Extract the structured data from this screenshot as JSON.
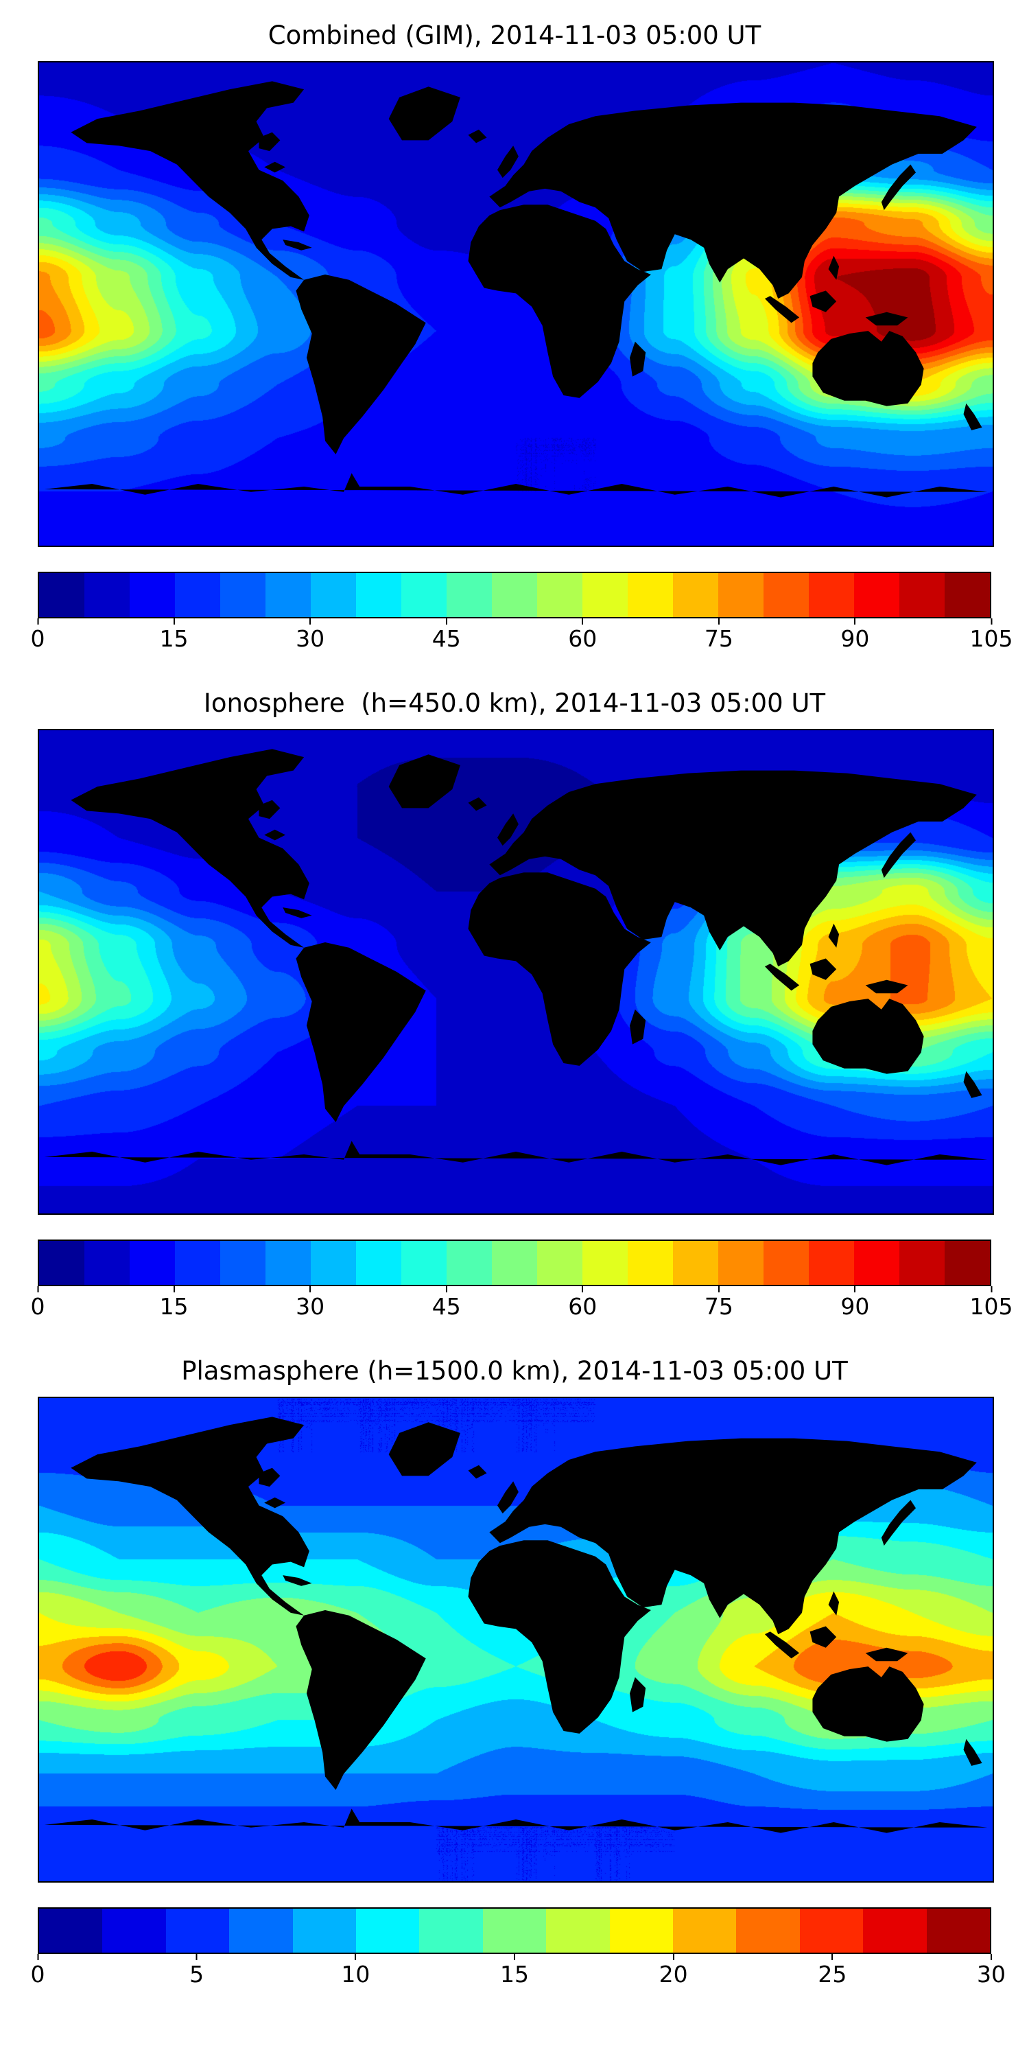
{
  "figure": {
    "description": "Three stacked global TEC maps with jet-colormap filled contours, coastlines and horizontal colorbars"
  },
  "chart_data": [
    {
      "type": "heatmap",
      "title": "Combined (GIM), 2014-11-03 05:00 UT",
      "projection": "equirectangular",
      "xlabel": "",
      "ylabel": "",
      "lon": [
        -180,
        -150,
        -120,
        -90,
        -60,
        -30,
        0,
        30,
        60,
        90,
        120,
        150,
        180
      ],
      "lat": [
        90,
        70,
        50,
        30,
        10,
        -10,
        -30,
        -50,
        -70,
        -90
      ],
      "values": [
        [
          8,
          8,
          8,
          8,
          8,
          8,
          8,
          8,
          8,
          9,
          10,
          9,
          8
        ],
        [
          11,
          10,
          9,
          8,
          8,
          7,
          7,
          8,
          10,
          13,
          16,
          13,
          11
        ],
        [
          18,
          15,
          12,
          10,
          8,
          6,
          6,
          8,
          13,
          22,
          30,
          26,
          20
        ],
        [
          46,
          32,
          21,
          15,
          12,
          8,
          8,
          13,
          27,
          52,
          82,
          76,
          52
        ],
        [
          76,
          56,
          36,
          25,
          18,
          12,
          10,
          16,
          36,
          66,
          100,
          102,
          84
        ],
        [
          82,
          62,
          41,
          28,
          20,
          15,
          12,
          18,
          36,
          62,
          96,
          103,
          88
        ],
        [
          46,
          36,
          26,
          20,
          15,
          12,
          10,
          13,
          21,
          36,
          60,
          70,
          52
        ],
        [
          26,
          22,
          18,
          15,
          14,
          12,
          10,
          10,
          13,
          18,
          26,
          28,
          26
        ],
        [
          15,
          15,
          14,
          12,
          12,
          10,
          10,
          10,
          10,
          12,
          15,
          16,
          15
        ],
        [
          11,
          11,
          11,
          11,
          11,
          11,
          11,
          11,
          11,
          11,
          11,
          11,
          11
        ]
      ],
      "levels": {
        "min": 0,
        "max": 105,
        "step": 5
      },
      "colorbar_ticks": [
        0,
        15,
        30,
        45,
        60,
        75,
        90,
        105
      ],
      "colormap": "jet",
      "legend": "colorbar bottom"
    },
    {
      "type": "heatmap",
      "title": "Ionosphere  (h=450.0 km), 2014-11-03 05:00 UT",
      "projection": "equirectangular",
      "xlabel": "",
      "ylabel": "",
      "lon": [
        -180,
        -150,
        -120,
        -90,
        -60,
        -30,
        0,
        30,
        60,
        90,
        120,
        150,
        180
      ],
      "lat": [
        90,
        70,
        50,
        30,
        10,
        -10,
        -30,
        -50,
        -70,
        -90
      ],
      "values": [
        [
          6,
          6,
          6,
          6,
          6,
          6,
          6,
          6,
          6,
          6,
          7,
          7,
          6
        ],
        [
          8,
          8,
          6,
          5,
          5,
          4,
          4,
          5,
          6,
          8,
          10,
          10,
          8
        ],
        [
          12,
          10,
          8,
          6,
          5,
          3,
          3,
          5,
          8,
          13,
          19,
          19,
          15
        ],
        [
          30,
          21,
          14,
          10,
          8,
          5,
          5,
          8,
          18,
          36,
          56,
          62,
          42
        ],
        [
          61,
          42,
          26,
          18,
          12,
          8,
          6,
          11,
          26,
          52,
          72,
          82,
          66
        ],
        [
          66,
          46,
          31,
          22,
          15,
          10,
          8,
          12,
          28,
          52,
          76,
          81,
          70
        ],
        [
          36,
          28,
          21,
          15,
          12,
          10,
          8,
          10,
          16,
          28,
          46,
          50,
          40
        ],
        [
          20,
          18,
          15,
          12,
          10,
          10,
          8,
          8,
          10,
          15,
          20,
          22,
          20
        ],
        [
          12,
          12,
          10,
          10,
          8,
          8,
          8,
          8,
          8,
          10,
          12,
          12,
          12
        ],
        [
          8,
          8,
          8,
          8,
          8,
          8,
          8,
          8,
          8,
          8,
          8,
          8,
          8
        ]
      ],
      "levels": {
        "min": 0,
        "max": 105,
        "step": 5
      },
      "colorbar_ticks": [
        0,
        15,
        30,
        45,
        60,
        75,
        90,
        105
      ],
      "colormap": "jet",
      "legend": "colorbar bottom"
    },
    {
      "type": "heatmap",
      "title": "Plasmasphere (h=1500.0 km), 2014-11-03 05:00 UT",
      "projection": "equirectangular",
      "xlabel": "",
      "ylabel": "",
      "lon": [
        -180,
        -150,
        -120,
        -90,
        -60,
        -30,
        0,
        30,
        60,
        90,
        120,
        150,
        180
      ],
      "lat": [
        90,
        70,
        50,
        30,
        10,
        -10,
        -30,
        -50,
        -70,
        -90
      ],
      "values": [
        [
          4,
          4,
          4,
          4,
          4,
          4,
          4,
          4,
          4,
          4,
          4,
          4,
          4
        ],
        [
          5,
          5,
          5,
          4,
          4,
          4,
          4,
          4,
          5,
          5,
          6,
          6,
          5
        ],
        [
          8,
          7,
          7,
          6,
          6,
          6,
          6,
          6,
          7,
          8,
          9,
          9,
          8
        ],
        [
          12,
          10,
          10,
          10,
          10,
          8,
          8,
          9,
          10,
          12,
          14,
          13,
          12
        ],
        [
          18,
          16,
          14,
          15,
          14,
          12,
          10,
          12,
          14,
          17,
          20,
          18,
          16
        ],
        [
          21,
          26,
          19,
          16,
          16,
          13,
          12,
          13,
          15,
          20,
          24,
          23,
          21
        ],
        [
          14,
          15,
          13,
          12,
          12,
          10,
          9,
          10,
          11,
          13,
          16,
          15,
          14
        ],
        [
          8,
          8,
          8,
          8,
          8,
          8,
          7,
          7,
          7,
          8,
          9,
          9,
          8
        ],
        [
          5,
          5,
          5,
          5,
          5,
          4,
          4,
          4,
          4,
          5,
          5,
          5,
          5
        ],
        [
          4,
          4,
          4,
          4,
          4,
          4,
          4,
          4,
          4,
          4,
          4,
          4,
          4
        ]
      ],
      "levels": {
        "min": 0,
        "max": 30,
        "step": 2
      },
      "colorbar_ticks": [
        0,
        5,
        10,
        15,
        20,
        25,
        30
      ],
      "colormap": "jet",
      "legend": "colorbar bottom"
    }
  ]
}
